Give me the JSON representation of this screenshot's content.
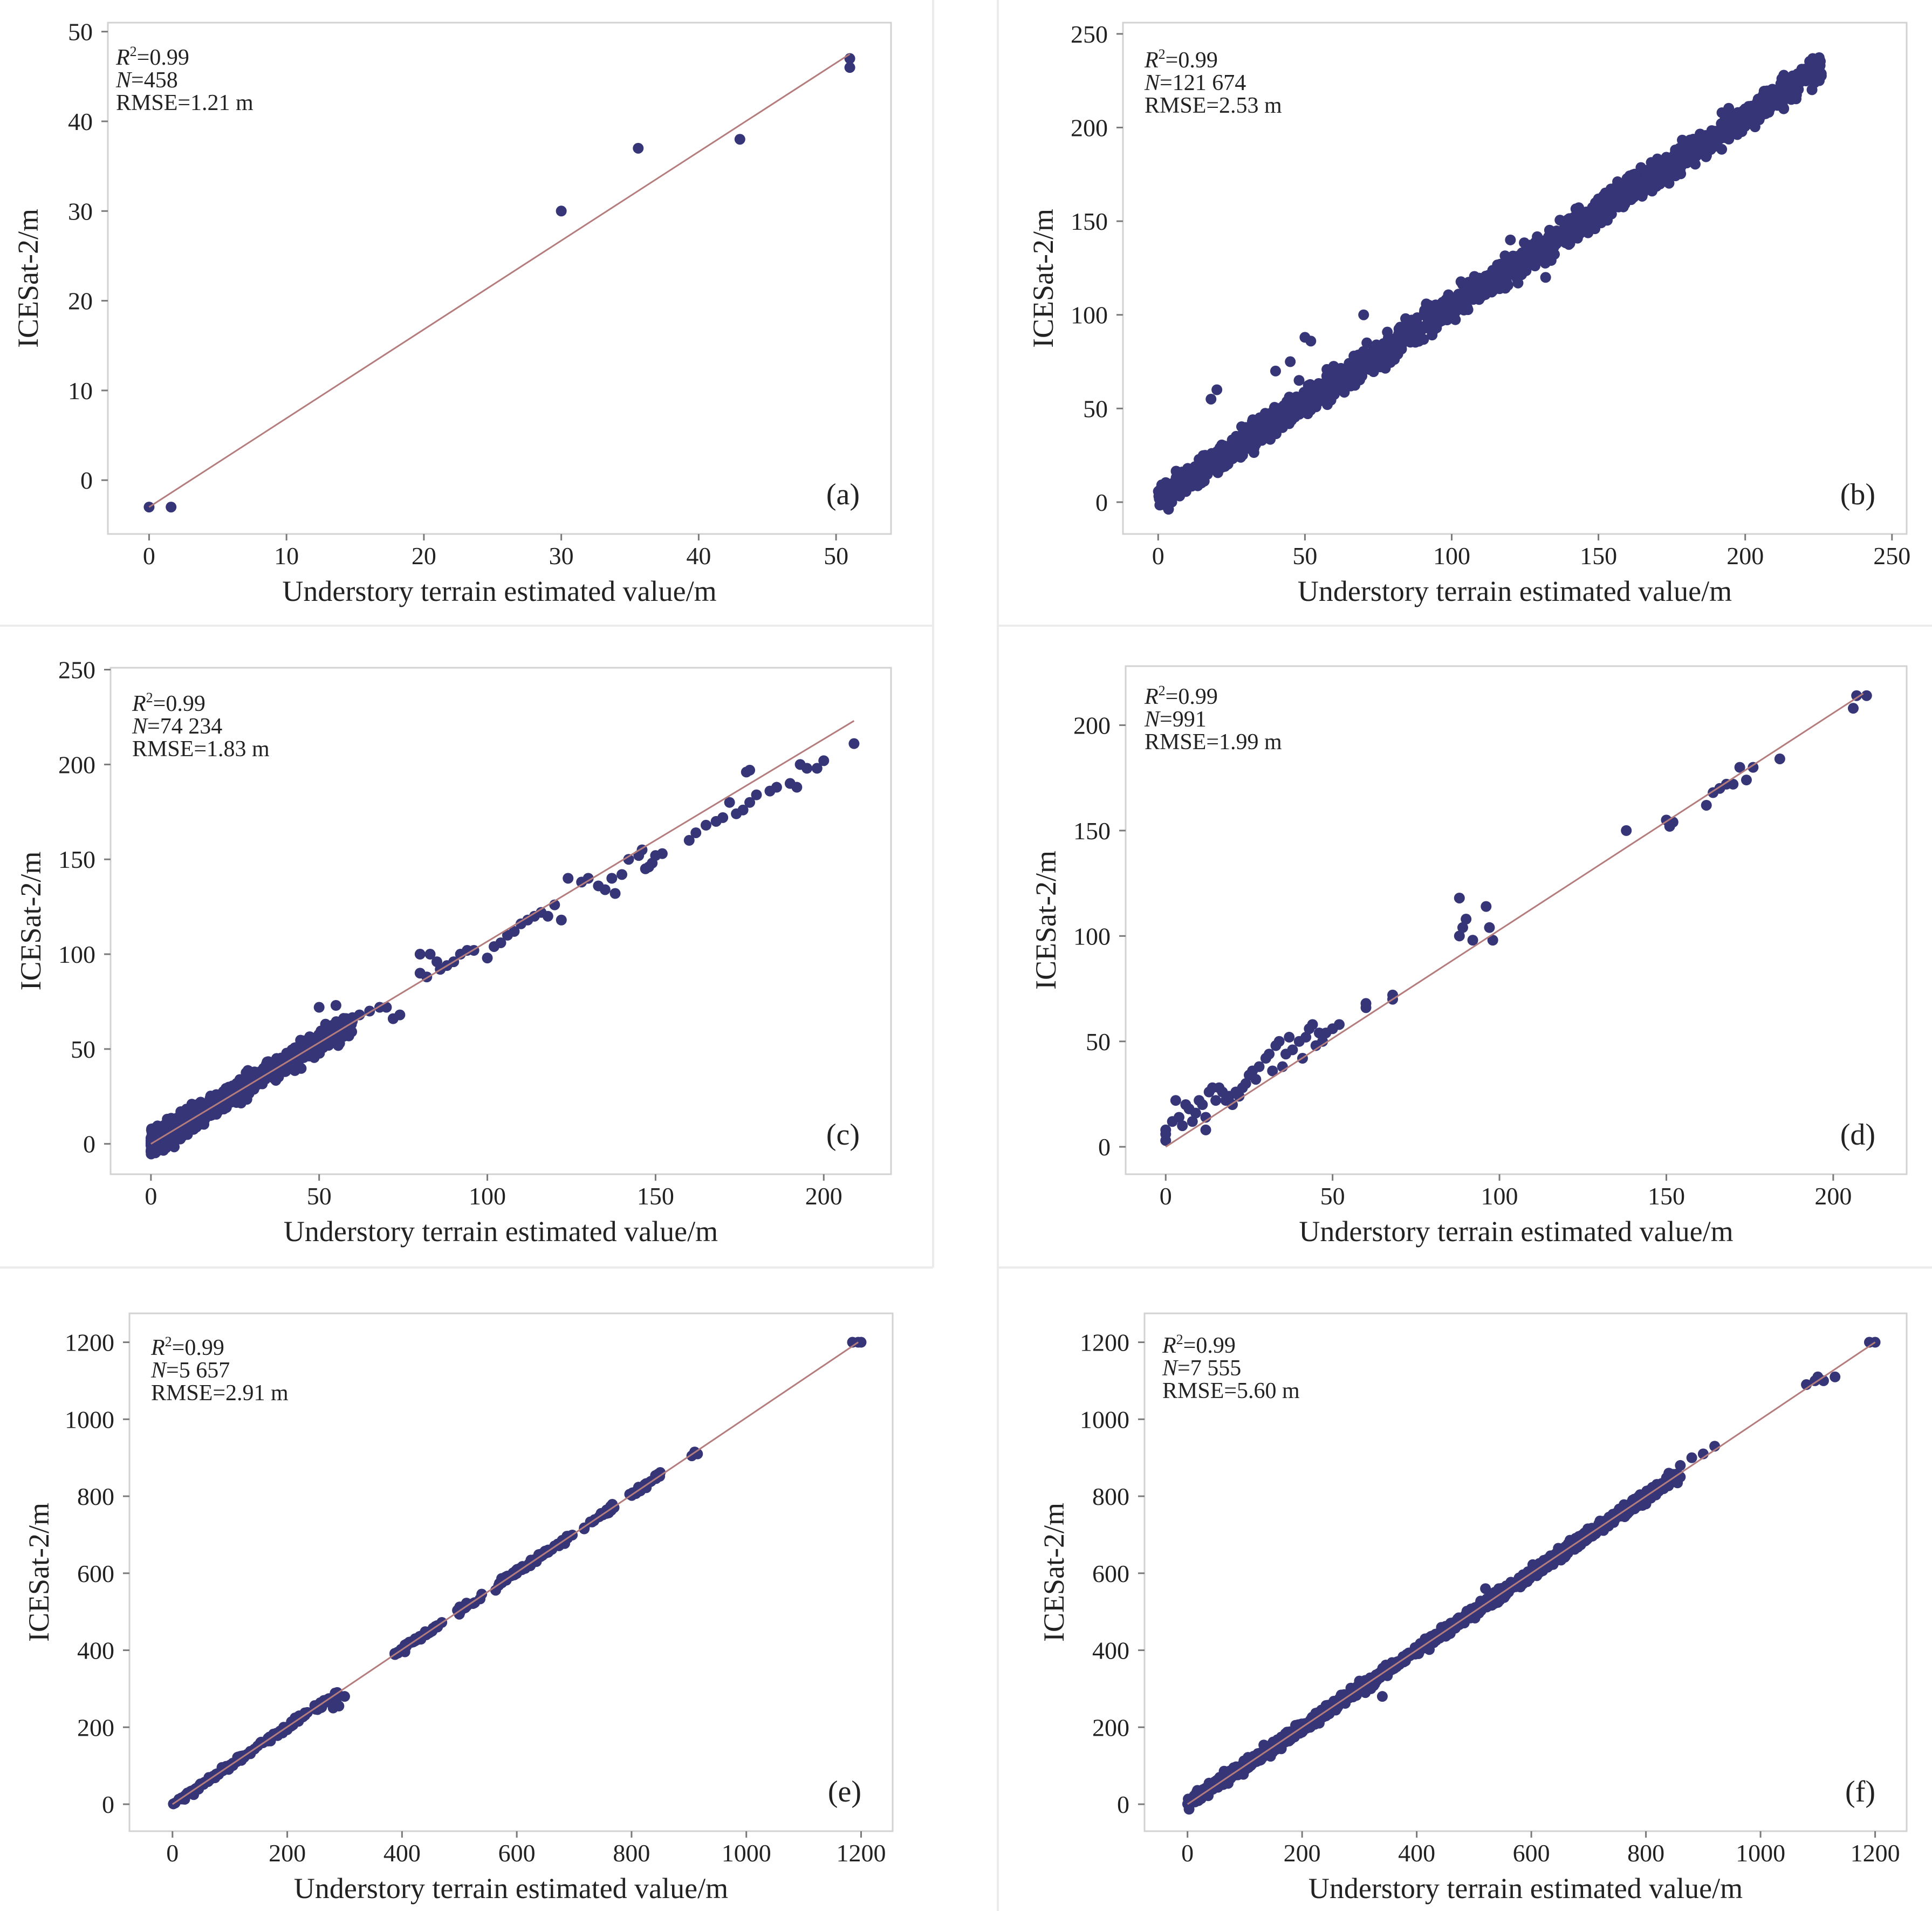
{
  "figure": {
    "background": "#ffffff",
    "point_color": "#353577",
    "line_color": "#b47c7c",
    "axis_color": "#7a7a7a"
  },
  "chart_data": [
    {
      "id": "a",
      "type": "scatter",
      "panel_label": "(a)",
      "xlabel": "Understory terrain estimated value/m",
      "ylabel": "ICESat-2/m",
      "xlim": [
        -3,
        54
      ],
      "ylim": [
        -6,
        51
      ],
      "xticks": [
        0,
        10,
        20,
        30,
        40,
        50
      ],
      "yticks": [
        0,
        10,
        20,
        30,
        40,
        50
      ],
      "stats": {
        "r2_symbol": "R",
        "r2_sup": "2",
        "r2_value": "=0.99",
        "n_symbol": "N",
        "n_value": "=458",
        "rmse": "RMSE=1.21 m"
      },
      "fit_line": {
        "x": [
          0,
          51
        ],
        "y": [
          -3,
          47.5
        ]
      },
      "points": [
        [
          0,
          -3
        ],
        [
          1.6,
          -3
        ],
        [
          30,
          30
        ],
        [
          35.6,
          37
        ],
        [
          43,
          38
        ],
        [
          51,
          47
        ],
        [
          51,
          46
        ]
      ]
    },
    {
      "id": "b",
      "type": "scatter",
      "panel_label": "(b)",
      "xlabel": "Understory terrain estimated value/m",
      "ylabel": "ICESat-2/m",
      "xlim": [
        -12,
        255
      ],
      "ylim": [
        -17,
        256
      ],
      "xticks": [
        0,
        50,
        100,
        150,
        200,
        250
      ],
      "yticks": [
        0,
        50,
        100,
        150,
        200,
        250
      ],
      "stats": {
        "r2_symbol": "R",
        "r2_sup": "2",
        "r2_value": "=0.99",
        "n_symbol": "N",
        "n_value": "=121 674",
        "rmse": "RMSE=2.53 m"
      },
      "cloud": {
        "x_range": [
          0,
          226
        ],
        "spread": 5.5,
        "count": 1800
      },
      "points": [
        [
          18,
          55
        ],
        [
          20,
          60
        ],
        [
          40,
          70
        ],
        [
          45,
          75
        ],
        [
          48,
          65
        ],
        [
          50,
          88
        ],
        [
          52,
          86
        ],
        [
          60,
          60
        ],
        [
          70,
          100
        ],
        [
          120,
          140
        ],
        [
          132,
          120
        ],
        [
          150,
          150
        ],
        [
          200,
          210
        ]
      ]
    },
    {
      "id": "c",
      "type": "scatter",
      "panel_label": "(c)",
      "xlabel": "Understory terrain estimated value/m",
      "ylabel": "ICESat-2/m",
      "xlim": [
        -12,
        220
      ],
      "ylim": [
        -16,
        251
      ],
      "xticks": [
        0,
        50,
        100,
        150,
        200
      ],
      "yticks": [
        0,
        50,
        100,
        150,
        200,
        250
      ],
      "stats": {
        "r2_symbol": "R",
        "r2_sup": "2",
        "r2_value": "=0.99",
        "n_symbol": "N",
        "n_value": "=74 234",
        "rmse": "RMSE=1.83 m"
      },
      "fit_line": {
        "x": [
          0,
          209
        ],
        "y": [
          0,
          223
        ]
      },
      "cloud": {
        "x_range": [
          0,
          60
        ],
        "spread": 4.5,
        "count": 900
      },
      "points": [
        [
          50,
          72
        ],
        [
          55,
          73
        ],
        [
          60,
          66
        ],
        [
          62,
          68
        ],
        [
          65,
          70
        ],
        [
          68,
          72
        ],
        [
          70,
          72
        ],
        [
          72,
          66
        ],
        [
          74,
          68
        ],
        [
          80,
          100
        ],
        [
          83,
          100
        ],
        [
          80,
          90
        ],
        [
          82,
          88
        ],
        [
          85,
          96
        ],
        [
          86,
          92
        ],
        [
          88,
          94
        ],
        [
          90,
          96
        ],
        [
          92,
          100
        ],
        [
          94,
          102
        ],
        [
          96,
          102
        ],
        [
          100,
          98
        ],
        [
          102,
          104
        ],
        [
          104,
          106
        ],
        [
          106,
          110
        ],
        [
          108,
          112
        ],
        [
          110,
          116
        ],
        [
          112,
          118
        ],
        [
          114,
          120
        ],
        [
          116,
          122
        ],
        [
          118,
          120
        ],
        [
          120,
          126
        ],
        [
          122,
          118
        ],
        [
          124,
          140
        ],
        [
          128,
          138
        ],
        [
          130,
          140
        ],
        [
          133,
          136
        ],
        [
          135,
          134
        ],
        [
          137,
          140
        ],
        [
          138,
          132
        ],
        [
          140,
          142
        ],
        [
          142,
          150
        ],
        [
          145,
          152
        ],
        [
          146,
          155
        ],
        [
          147,
          145
        ],
        [
          148,
          146
        ],
        [
          149,
          148
        ],
        [
          150,
          152
        ],
        [
          152,
          153
        ],
        [
          160,
          160
        ],
        [
          162,
          164
        ],
        [
          165,
          168
        ],
        [
          168,
          170
        ],
        [
          170,
          172
        ],
        [
          172,
          180
        ],
        [
          174,
          174
        ],
        [
          176,
          176
        ],
        [
          177,
          196
        ],
        [
          178,
          197
        ],
        [
          178,
          180
        ],
        [
          180,
          184
        ],
        [
          184,
          186
        ],
        [
          186,
          188
        ],
        [
          190,
          190
        ],
        [
          192,
          188
        ],
        [
          193,
          200
        ],
        [
          195,
          198
        ],
        [
          198,
          198
        ],
        [
          200,
          202
        ],
        [
          209,
          211
        ]
      ]
    },
    {
      "id": "d",
      "type": "scatter",
      "panel_label": "(d)",
      "xlabel": "Understory terrain estimated value/m",
      "ylabel": "ICESat-2/m",
      "xlim": [
        -12,
        222
      ],
      "ylim": [
        -13,
        228
      ],
      "xticks": [
        0,
        50,
        100,
        150,
        200
      ],
      "yticks": [
        0,
        50,
        100,
        150,
        200
      ],
      "stats": {
        "r2_symbol": "R",
        "r2_sup": "2",
        "r2_value": "=0.99",
        "n_symbol": "N",
        "n_value": "=991",
        "rmse": "RMSE=1.99 m"
      },
      "fit_line": {
        "x": [
          0,
          209
        ],
        "y": [
          0,
          215
        ]
      },
      "points": [
        [
          0,
          3
        ],
        [
          0,
          6
        ],
        [
          0,
          8
        ],
        [
          2,
          12
        ],
        [
          3,
          22
        ],
        [
          4,
          14
        ],
        [
          5,
          10
        ],
        [
          6,
          20
        ],
        [
          7,
          18
        ],
        [
          8,
          12
        ],
        [
          9,
          16
        ],
        [
          10,
          22
        ],
        [
          11,
          20
        ],
        [
          12,
          14
        ],
        [
          12,
          8
        ],
        [
          13,
          26
        ],
        [
          14,
          28
        ],
        [
          15,
          22
        ],
        [
          16,
          28
        ],
        [
          17,
          26
        ],
        [
          18,
          22
        ],
        [
          19,
          24
        ],
        [
          20,
          20
        ],
        [
          21,
          26
        ],
        [
          22,
          24
        ],
        [
          23,
          28
        ],
        [
          24,
          30
        ],
        [
          25,
          34
        ],
        [
          26,
          36
        ],
        [
          27,
          32
        ],
        [
          28,
          38
        ],
        [
          30,
          42
        ],
        [
          31,
          44
        ],
        [
          32,
          36
        ],
        [
          33,
          48
        ],
        [
          34,
          50
        ],
        [
          35,
          38
        ],
        [
          36,
          44
        ],
        [
          37,
          52
        ],
        [
          38,
          46
        ],
        [
          40,
          50
        ],
        [
          41,
          42
        ],
        [
          42,
          52
        ],
        [
          43,
          56
        ],
        [
          44,
          58
        ],
        [
          45,
          48
        ],
        [
          46,
          54
        ],
        [
          47,
          50
        ],
        [
          48,
          54
        ],
        [
          50,
          56
        ],
        [
          52,
          58
        ],
        [
          60,
          66
        ],
        [
          60,
          68
        ],
        [
          68,
          70
        ],
        [
          68,
          72
        ],
        [
          88,
          118
        ],
        [
          88,
          100
        ],
        [
          89,
          104
        ],
        [
          90,
          108
        ],
        [
          92,
          98
        ],
        [
          96,
          114
        ],
        [
          97,
          104
        ],
        [
          98,
          98
        ],
        [
          138,
          150
        ],
        [
          150,
          155
        ],
        [
          151,
          152
        ],
        [
          152,
          154
        ],
        [
          162,
          162
        ],
        [
          164,
          168
        ],
        [
          166,
          170
        ],
        [
          168,
          172
        ],
        [
          170,
          172
        ],
        [
          172,
          180
        ],
        [
          174,
          174
        ],
        [
          176,
          180
        ],
        [
          184,
          184
        ],
        [
          206,
          208
        ],
        [
          207,
          214
        ],
        [
          210,
          214
        ]
      ]
    },
    {
      "id": "e",
      "type": "scatter",
      "panel_label": "(e)",
      "xlabel": "Understory terrain estimated value/m",
      "ylabel": "ICESat-2/m",
      "xlim": [
        -75,
        1255
      ],
      "ylim": [
        -70,
        1275
      ],
      "xticks": [
        0,
        200,
        400,
        600,
        800,
        1000,
        1200
      ],
      "yticks": [
        0,
        200,
        400,
        600,
        800,
        1000,
        1200
      ],
      "stats": {
        "r2_symbol": "R",
        "r2_sup": "2",
        "r2_value": "=0.99",
        "n_symbol": "N",
        "n_value": "=5 657",
        "rmse": "RMSE=2.91 m"
      },
      "fit_line": {
        "x": [
          0,
          1195
        ],
        "y": [
          0,
          1200
        ]
      },
      "cloud_segments": [
        [
          0,
          290
        ],
        [
          385,
          470
        ],
        [
          495,
          540
        ],
        [
          560,
          700
        ],
        [
          710,
          770
        ],
        [
          790,
          850
        ]
      ],
      "segment_spread": 6,
      "segment_density": 0.45,
      "points": [
        [
          280,
          250
        ],
        [
          285,
          270
        ],
        [
          290,
          255
        ],
        [
          300,
          280
        ],
        [
          905,
          905
        ],
        [
          910,
          915
        ],
        [
          915,
          910
        ],
        [
          1185,
          1200
        ],
        [
          1195,
          1200
        ],
        [
          1200,
          1200
        ]
      ]
    },
    {
      "id": "f",
      "type": "scatter",
      "panel_label": "(f)",
      "xlabel": "Understory terrain estimated value/m",
      "ylabel": "ICESat-2/m",
      "xlim": [
        -75,
        1255
      ],
      "ylim": [
        -70,
        1275
      ],
      "xticks": [
        0,
        200,
        400,
        600,
        800,
        1000,
        1200
      ],
      "yticks": [
        0,
        200,
        400,
        600,
        800,
        1000,
        1200
      ],
      "stats": {
        "r2_symbol": "R",
        "r2_sup": "2",
        "r2_value": "=0.99",
        "n_symbol": "N",
        "n_value": "=7 555",
        "rmse": "RMSE=5.60 m"
      },
      "fit_line": {
        "x": [
          0,
          1200
        ],
        "y": [
          0,
          1200
        ]
      },
      "cloud": {
        "x_range": [
          0,
          860
        ],
        "spread": 10,
        "count": 1400
      },
      "points": [
        [
          290,
          300
        ],
        [
          300,
          320
        ],
        [
          320,
          300
        ],
        [
          340,
          280
        ],
        [
          520,
          560
        ],
        [
          800,
          780
        ],
        [
          840,
          860
        ],
        [
          860,
          880
        ],
        [
          880,
          900
        ],
        [
          900,
          910
        ],
        [
          920,
          930
        ],
        [
          860,
          850
        ],
        [
          1080,
          1090
        ],
        [
          1095,
          1100
        ],
        [
          1100,
          1110
        ],
        [
          1110,
          1100
        ],
        [
          1130,
          1110
        ],
        [
          1190,
          1200
        ],
        [
          1200,
          1200
        ]
      ]
    }
  ]
}
